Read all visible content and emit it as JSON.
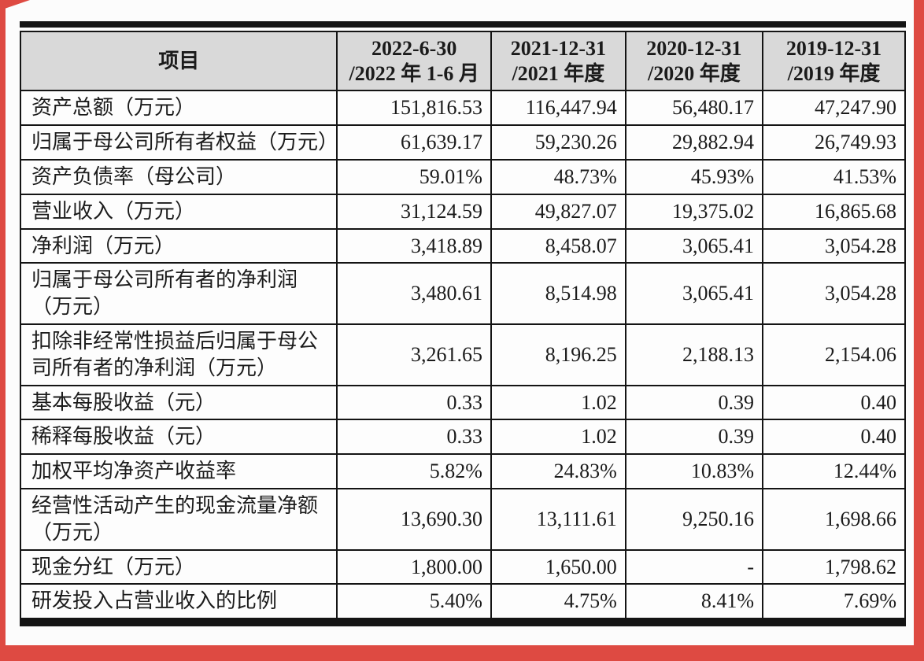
{
  "page": {
    "frame_color": "#de4a42",
    "sheet_color": "#fcfcfc",
    "header_bg_color": "#d9d9d9",
    "border_color": "#141414",
    "text_color": "#1b1b1b"
  },
  "table": {
    "header": {
      "item_label": "项目",
      "periods": [
        {
          "line1": "2022-6-30",
          "line2": "/2022 年 1-6 月"
        },
        {
          "line1": "2021-12-31",
          "line2": "/2021 年度"
        },
        {
          "line1": "2020-12-31",
          "line2": "/2020 年度"
        },
        {
          "line1": "2019-12-31",
          "line2": "/2019 年度"
        }
      ]
    },
    "rows": [
      {
        "item": "资产总额（万元）",
        "values": [
          "151,816.53",
          "116,447.94",
          "56,480.17",
          "47,247.90"
        ]
      },
      {
        "item": "归属于母公司所有者权益（万元）",
        "values": [
          "61,639.17",
          "59,230.26",
          "29,882.94",
          "26,749.93"
        ]
      },
      {
        "item": "资产负债率（母公司）",
        "values": [
          "59.01%",
          "48.73%",
          "45.93%",
          "41.53%"
        ]
      },
      {
        "item": "营业收入（万元）",
        "values": [
          "31,124.59",
          "49,827.07",
          "19,375.02",
          "16,865.68"
        ]
      },
      {
        "item": "净利润（万元）",
        "values": [
          "3,418.89",
          "8,458.07",
          "3,065.41",
          "3,054.28"
        ]
      },
      {
        "item": "归属于母公司所有者的净利润（万元）",
        "values": [
          "3,480.61",
          "8,514.98",
          "3,065.41",
          "3,054.28"
        ]
      },
      {
        "item": "扣除非经常性损益后归属于母公司所有者的净利润（万元）",
        "values": [
          "3,261.65",
          "8,196.25",
          "2,188.13",
          "2,154.06"
        ]
      },
      {
        "item": "基本每股收益（元）",
        "values": [
          "0.33",
          "1.02",
          "0.39",
          "0.40"
        ]
      },
      {
        "item": "稀释每股收益（元）",
        "values": [
          "0.33",
          "1.02",
          "0.39",
          "0.40"
        ]
      },
      {
        "item": "加权平均净资产收益率",
        "values": [
          "5.82%",
          "24.83%",
          "10.83%",
          "12.44%"
        ]
      },
      {
        "item": "经营性活动产生的现金流量净额（万元）",
        "values": [
          "13,690.30",
          "13,111.61",
          "9,250.16",
          "1,698.66"
        ]
      },
      {
        "item": "现金分红（万元）",
        "values": [
          "1,800.00",
          "1,650.00",
          "-",
          "1,798.62"
        ]
      },
      {
        "item": "研发投入占营业收入的比例",
        "values": [
          "5.40%",
          "4.75%",
          "8.41%",
          "7.69%"
        ]
      }
    ]
  }
}
